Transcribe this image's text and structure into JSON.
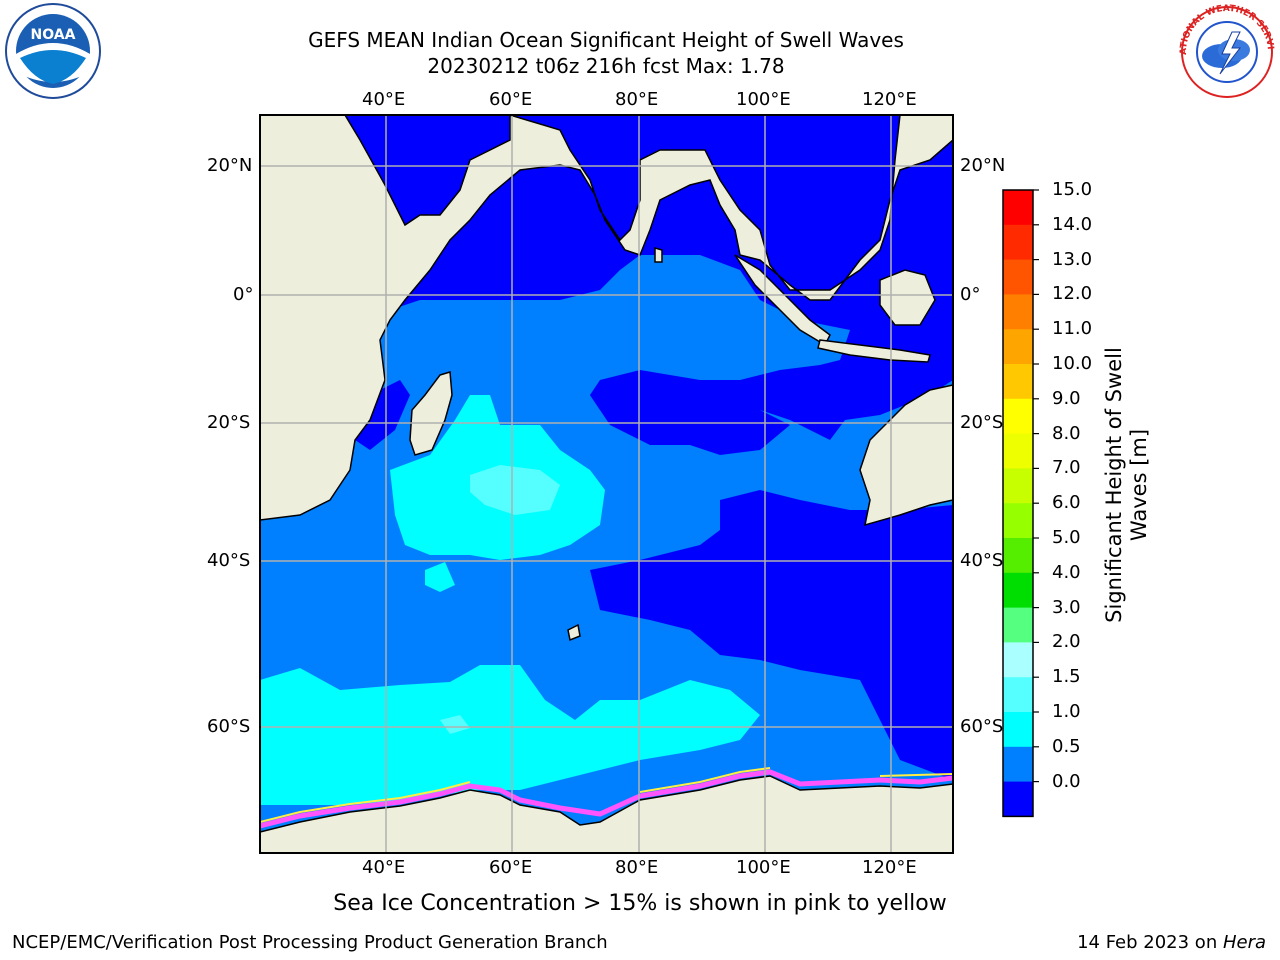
{
  "title": {
    "line1": "GEFS MEAN Indian Ocean Significant Height of Swell Waves",
    "line2": "20230212 t06z 216h fcst   Max: 1.78"
  },
  "map": {
    "lon_labels_top": [
      "40°E",
      "60°E",
      "80°E",
      "100°E",
      "120°E"
    ],
    "lon_labels_bottom": [
      "40°E",
      "60°E",
      "80°E",
      "100°E",
      "120°E"
    ],
    "lat_labels_left": [
      "20°N",
      "0°",
      "20°S",
      "40°S",
      "60°S"
    ],
    "lat_labels_right": [
      "20°N",
      "0°",
      "20°S",
      "40°S",
      "60°S"
    ]
  },
  "colorbar": {
    "title": "Significant Height of Swell Waves [m]",
    "ticks": [
      "15.0",
      "14.0",
      "13.0",
      "12.0",
      "11.0",
      "10.0",
      "9.0",
      "8.0",
      "7.0",
      "6.0",
      "5.0",
      "4.0",
      "3.0",
      "2.0",
      "1.5",
      "1.0",
      "0.5",
      "0.0"
    ],
    "colors": [
      "#ff0000",
      "#ff2a00",
      "#ff5500",
      "#ff7f00",
      "#ffa500",
      "#ffc800",
      "#ffff00",
      "#eeff00",
      "#c8ff00",
      "#96ff00",
      "#55ee00",
      "#00dd00",
      "#55ff80",
      "#aaffff",
      "#55ffff",
      "#00ffff",
      "#0080ff",
      "#0000ff"
    ]
  },
  "note": "Sea Ice Concentration > 15% is shown in pink to yellow",
  "footer": {
    "left": "NCEP/EMC/Verification Post Processing Product Generation Branch",
    "right_prefix": "14 Feb 2023 on ",
    "right_machine": "Hera"
  },
  "colors": {
    "land": "#eeeedd",
    "deep_blue": "#0000ff",
    "mid_blue": "#0080ff",
    "cyan": "#00ffff",
    "light_cyan": "#55ffff",
    "ice": "#ff55ff"
  },
  "logos": [
    "NOAA",
    "NATIONAL WEATHER SERVICE"
  ]
}
